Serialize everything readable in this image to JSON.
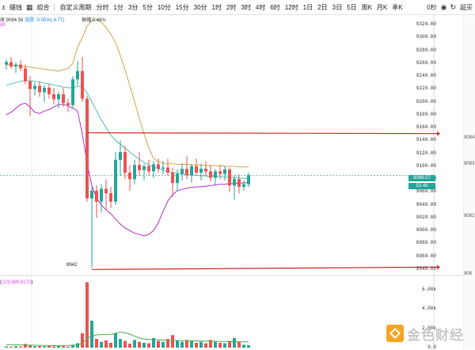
{
  "toolbar": {
    "symbol_menu": "±",
    "type_candles": "蜡烛",
    "type_combo": "组合",
    "custom_period": "自定义周期",
    "periods": [
      "分时",
      "1分",
      "3分",
      "5分",
      "10分",
      "15分",
      "30分",
      "1时",
      "2时",
      "3时",
      "4时",
      "6时",
      "12时",
      "1日",
      "2日",
      "3日",
      "5日",
      "周K",
      "月K",
      "季K"
    ],
    "right_items": [
      "0秒",
      "超买"
    ]
  },
  "legend": {
    "line1_prefix": "收:9084.56",
    "line1_change": "涨跌:-0.05%(-4.77)",
    "line1_amp": "振幅:0.46%",
    "bb": "88",
    "volume": "(10):889.8172"
  },
  "price_axis": {
    "ticks": [
      "9320.00",
      "9300.00",
      "9280.00",
      "9260.00",
      "9240.00",
      "9220.00",
      "9200.00",
      "9180.00",
      "9160.00",
      "9140.00",
      "9120.00",
      "9100.00",
      "9080.00",
      "9060.00",
      "9040.00",
      "9020.00",
      "9000.00",
      "8980.00",
      "8960.00",
      "8940.00"
    ],
    "last_price": "9086.07",
    "countdown": "52:45",
    "far_labels": [
      "9084.",
      "9083.",
      "9082.",
      "908"
    ]
  },
  "volume_axis": {
    "ticks": [
      "6.00k",
      "4.00k",
      "2.00k",
      "0.0"
    ]
  },
  "low_label": "8942",
  "lines": {
    "resistance": 9152,
    "support": 8942
  },
  "colors": {
    "up": "#26a69a",
    "down": "#ef5350",
    "upper_band": "#d4a64a",
    "mid_band": "#4fc3b8",
    "lower_band": "#b530c8",
    "hline": "#d32f2f",
    "vol_ma": "#4caf50"
  },
  "watermark": {
    "text": "金色财经"
  },
  "chart_data": {
    "type": "candlestick",
    "ylim": [
      8935,
      9335
    ],
    "candles": [
      {
        "o": 9258,
        "h": 9266,
        "l": 9250,
        "c": 9262
      },
      {
        "o": 9262,
        "h": 9270,
        "l": 9252,
        "c": 9255
      },
      {
        "o": 9255,
        "h": 9262,
        "l": 9245,
        "c": 9258
      },
      {
        "o": 9258,
        "h": 9265,
        "l": 9248,
        "c": 9252
      },
      {
        "o": 9252,
        "h": 9258,
        "l": 9228,
        "c": 9232
      },
      {
        "o": 9232,
        "h": 9240,
        "l": 9178,
        "c": 9220
      },
      {
        "o": 9220,
        "h": 9230,
        "l": 9210,
        "c": 9225
      },
      {
        "o": 9225,
        "h": 9232,
        "l": 9208,
        "c": 9215
      },
      {
        "o": 9215,
        "h": 9226,
        "l": 9200,
        "c": 9222
      },
      {
        "o": 9222,
        "h": 9228,
        "l": 9205,
        "c": 9212
      },
      {
        "o": 9212,
        "h": 9222,
        "l": 9196,
        "c": 9204
      },
      {
        "o": 9204,
        "h": 9216,
        "l": 9190,
        "c": 9212
      },
      {
        "o": 9212,
        "h": 9222,
        "l": 9192,
        "c": 9198
      },
      {
        "o": 9198,
        "h": 9205,
        "l": 9185,
        "c": 9195
      },
      {
        "o": 9195,
        "h": 9240,
        "l": 9190,
        "c": 9235
      },
      {
        "o": 9235,
        "h": 9264,
        "l": 9225,
        "c": 9248
      },
      {
        "o": 9248,
        "h": 9270,
        "l": 9200,
        "c": 9205
      },
      {
        "o": 9205,
        "h": 9210,
        "l": 9045,
        "c": 9050
      },
      {
        "o": 9050,
        "h": 9068,
        "l": 8942,
        "c": 9062
      },
      {
        "o": 9062,
        "h": 9070,
        "l": 9020,
        "c": 9045
      },
      {
        "o": 9045,
        "h": 9072,
        "l": 9028,
        "c": 9065
      },
      {
        "o": 9065,
        "h": 9080,
        "l": 9032,
        "c": 9058
      },
      {
        "o": 9058,
        "h": 9068,
        "l": 9035,
        "c": 9045
      },
      {
        "o": 9045,
        "h": 9122,
        "l": 9040,
        "c": 9110
      },
      {
        "o": 9110,
        "h": 9140,
        "l": 9085,
        "c": 9122
      },
      {
        "o": 9122,
        "h": 9132,
        "l": 9080,
        "c": 9090
      },
      {
        "o": 9090,
        "h": 9102,
        "l": 9062,
        "c": 9080
      },
      {
        "o": 9080,
        "h": 9110,
        "l": 9072,
        "c": 9102
      },
      {
        "o": 9102,
        "h": 9122,
        "l": 9085,
        "c": 9094
      },
      {
        "o": 9094,
        "h": 9104,
        "l": 9078,
        "c": 9100
      },
      {
        "o": 9100,
        "h": 9110,
        "l": 9086,
        "c": 9092
      },
      {
        "o": 9092,
        "h": 9108,
        "l": 9082,
        "c": 9103
      },
      {
        "o": 9103,
        "h": 9112,
        "l": 9090,
        "c": 9096
      },
      {
        "o": 9096,
        "h": 9108,
        "l": 9088,
        "c": 9098
      },
      {
        "o": 9098,
        "h": 9112,
        "l": 9085,
        "c": 9090
      },
      {
        "o": 9090,
        "h": 9098,
        "l": 9052,
        "c": 9074
      },
      {
        "o": 9074,
        "h": 9095,
        "l": 9062,
        "c": 9088
      },
      {
        "o": 9088,
        "h": 9105,
        "l": 9078,
        "c": 9096
      },
      {
        "o": 9096,
        "h": 9116,
        "l": 9080,
        "c": 9086
      },
      {
        "o": 9086,
        "h": 9104,
        "l": 9075,
        "c": 9100
      },
      {
        "o": 9100,
        "h": 9112,
        "l": 9086,
        "c": 9090
      },
      {
        "o": 9090,
        "h": 9104,
        "l": 9078,
        "c": 9096
      },
      {
        "o": 9096,
        "h": 9108,
        "l": 9085,
        "c": 9092
      },
      {
        "o": 9092,
        "h": 9102,
        "l": 9076,
        "c": 9082
      },
      {
        "o": 9082,
        "h": 9096,
        "l": 9070,
        "c": 9092
      },
      {
        "o": 9092,
        "h": 9102,
        "l": 9080,
        "c": 9088
      },
      {
        "o": 9088,
        "h": 9100,
        "l": 9078,
        "c": 9095
      },
      {
        "o": 9095,
        "h": 9098,
        "l": 9060,
        "c": 9070
      },
      {
        "o": 9070,
        "h": 9086,
        "l": 9048,
        "c": 9080
      },
      {
        "o": 9080,
        "h": 9088,
        "l": 9058,
        "c": 9068
      },
      {
        "o": 9068,
        "h": 9078,
        "l": 9062,
        "c": 9072
      },
      {
        "o": 9072,
        "h": 9090,
        "l": 9068,
        "c": 9086
      }
    ],
    "upper_band": [
      9258,
      9258,
      9257,
      9256,
      9255,
      9254,
      9253,
      9252,
      9251,
      9250,
      9249,
      9248,
      9250,
      9252,
      9260,
      9285,
      9300,
      9318,
      9326,
      9328,
      9324,
      9316,
      9305,
      9292,
      9272,
      9250,
      9225,
      9200,
      9175,
      9150,
      9128,
      9112,
      9107,
      9105,
      9104,
      9104,
      9103,
      9103,
      9103,
      9102,
      9102,
      9102,
      9101,
      9101,
      9101,
      9101,
      9100,
      9100,
      9100,
      9099,
      9099,
      9099
    ],
    "mid_band": [
      9226,
      9228,
      9230,
      9232,
      9233,
      9233,
      9232,
      9231,
      9229,
      9228,
      9226,
      9225,
      9223,
      9222,
      9222,
      9224,
      9224,
      9214,
      9200,
      9186,
      9172,
      9160,
      9148,
      9140,
      9134,
      9128,
      9122,
      9116,
      9111,
      9106,
      9102,
      9099,
      9096,
      9094,
      9092,
      9090,
      9089,
      9088,
      9087,
      9086,
      9086,
      9085,
      9085,
      9084,
      9084,
      9084,
      9083,
      9083,
      9082,
      9082,
      9081,
      9081
    ],
    "lower_band": [
      9180,
      9184,
      9190,
      9196,
      9198,
      9192,
      9184,
      9182,
      9186,
      9188,
      9192,
      9196,
      9196,
      9194,
      9190,
      9186,
      9150,
      9105,
      9070,
      9050,
      9040,
      9032,
      9026,
      9018,
      9010,
      9004,
      9000,
      8996,
      8994,
      8992,
      8994,
      9000,
      9012,
      9030,
      9046,
      9056,
      9062,
      9064,
      9066,
      9067,
      9068,
      9068,
      9069,
      9070,
      9071,
      9072,
      9072,
      9073,
      9073,
      9074,
      9074,
      9075
    ],
    "volumes": [
      120,
      90,
      150,
      110,
      380,
      220,
      140,
      160,
      130,
      180,
      120,
      170,
      140,
      100,
      300,
      460,
      1500,
      6800,
      2800,
      900,
      600,
      750,
      500,
      1500,
      900,
      700,
      400,
      800,
      600,
      500,
      450,
      1000,
      700,
      600,
      900,
      1300,
      700,
      600,
      800,
      700,
      500,
      600,
      450,
      800,
      600,
      500,
      450,
      700,
      1000,
      600,
      300,
      250
    ],
    "volume_ma": [
      300,
      300,
      290,
      280,
      270,
      260,
      250,
      240,
      230,
      220,
      210,
      200,
      210,
      230,
      260,
      300,
      440,
      980,
      1250,
      1320,
      1350,
      1370,
      1380,
      1500,
      1600,
      1550,
      1400,
      1200,
      1000,
      900,
      850,
      820,
      800,
      780,
      760,
      750,
      740,
      730,
      720,
      710,
      700,
      690,
      680,
      670,
      660,
      650,
      640,
      630,
      620,
      610,
      600,
      590
    ]
  }
}
